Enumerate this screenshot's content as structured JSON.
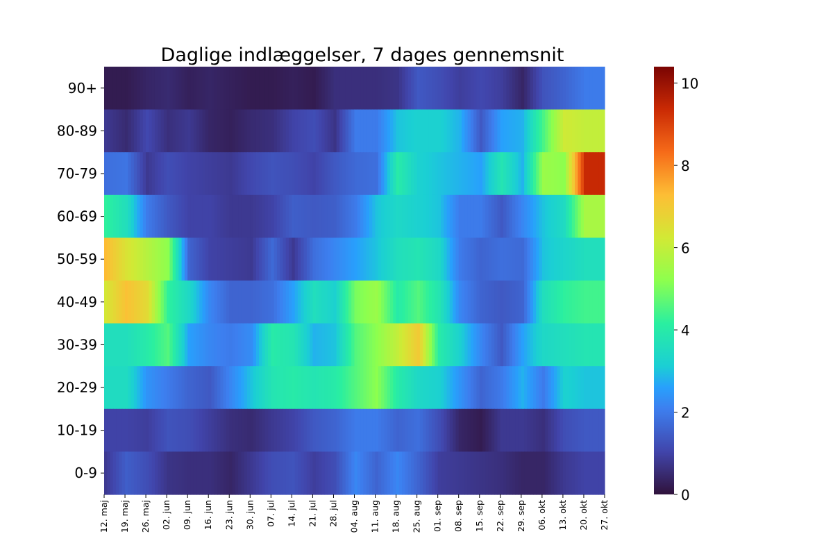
{
  "chart_data": {
    "type": "heatmap",
    "title": "Daglige indlæggelser, 7 dages gennemsnit",
    "xlabel": "",
    "ylabel": "",
    "rows": [
      "90+",
      "80-89",
      "70-79",
      "60-69",
      "50-59",
      "40-49",
      "30-39",
      "20-29",
      "10-19",
      "0-9"
    ],
    "x_tick_labels": [
      "12. maj",
      "19. maj",
      "26. maj",
      "02. jun",
      "09. jun",
      "16. jun",
      "23. jun",
      "30. jun",
      "07. jul",
      "14. jul",
      "21. jul",
      "28. jul",
      "04. aug",
      "11. aug",
      "18. aug",
      "25. aug",
      "01. sep",
      "08. sep",
      "15. sep",
      "22. sep",
      "29. sep",
      "06. okt",
      "13. okt",
      "20. okt",
      "27. okt"
    ],
    "colorbar": {
      "min": 0,
      "max": 10.4,
      "ticks": [
        "0",
        "2",
        "4",
        "6",
        "8",
        "10"
      ],
      "colormap": "turbo"
    },
    "weekly_values": [
      [
        0.2,
        0.2,
        0.4,
        0.5,
        0.3,
        0.4,
        0.3,
        0.2,
        0.2,
        0.3,
        0.2,
        0.6,
        0.6,
        0.6,
        0.7,
        1.4,
        1.2,
        0.9,
        1.1,
        0.9,
        0.4,
        1.3,
        1.6,
        2.0
      ],
      [
        0.8,
        0.5,
        1.1,
        0.6,
        0.8,
        0.4,
        0.3,
        0.5,
        0.6,
        1.0,
        1.2,
        0.7,
        2.0,
        2.0,
        3.0,
        3.2,
        3.2,
        2.8,
        1.4,
        2.6,
        2.8,
        4.5,
        6.2,
        6.0
      ],
      [
        1.8,
        1.9,
        0.8,
        1.2,
        1.0,
        0.9,
        0.8,
        1.1,
        1.3,
        1.2,
        1.0,
        1.4,
        1.7,
        1.8,
        4.0,
        3.2,
        3.0,
        2.8,
        2.6,
        3.8,
        2.8,
        5.4,
        5.2,
        9.4
      ],
      [
        4.2,
        3.6,
        2.0,
        1.4,
        1.0,
        1.0,
        0.8,
        0.8,
        1.0,
        1.5,
        1.4,
        1.5,
        2.0,
        3.0,
        3.4,
        3.2,
        3.0,
        2.0,
        2.0,
        1.4,
        2.2,
        3.0,
        3.5,
        5.6
      ],
      [
        7.3,
        6.4,
        5.8,
        5.2,
        1.6,
        1.0,
        0.9,
        0.8,
        1.7,
        0.8,
        1.8,
        2.2,
        2.6,
        3.0,
        3.6,
        3.8,
        3.4,
        2.0,
        1.6,
        1.8,
        1.7,
        3.0,
        3.3,
        3.6
      ],
      [
        6.3,
        7.2,
        6.6,
        4.2,
        3.4,
        2.2,
        1.6,
        1.6,
        1.8,
        2.6,
        3.6,
        3.2,
        5.0,
        5.4,
        4.0,
        4.6,
        3.8,
        2.2,
        1.6,
        1.4,
        1.6,
        3.6,
        4.2,
        4.4
      ],
      [
        3.6,
        3.6,
        4.0,
        4.6,
        2.6,
        2.2,
        2.0,
        2.3,
        4.0,
        3.8,
        2.8,
        3.0,
        4.6,
        5.2,
        6.0,
        7.0,
        4.0,
        3.2,
        2.2,
        1.4,
        2.6,
        3.4,
        3.6,
        3.8
      ],
      [
        3.5,
        3.5,
        2.4,
        2.0,
        1.6,
        1.4,
        2.2,
        3.0,
        3.8,
        4.0,
        3.8,
        4.0,
        4.6,
        5.2,
        4.0,
        3.4,
        3.2,
        2.4,
        1.6,
        2.0,
        2.8,
        2.0,
        3.2,
        3.0
      ],
      [
        1.0,
        1.0,
        0.9,
        1.3,
        1.2,
        0.9,
        0.6,
        0.5,
        0.8,
        1.0,
        1.4,
        1.6,
        2.0,
        2.0,
        1.6,
        1.8,
        1.2,
        0.4,
        0.2,
        0.8,
        0.8,
        0.6,
        1.2,
        1.4
      ],
      [
        0.8,
        1.5,
        1.2,
        0.7,
        0.6,
        0.6,
        0.4,
        0.8,
        1.2,
        1.3,
        0.9,
        1.2,
        2.2,
        1.6,
        2.2,
        1.6,
        0.9,
        0.8,
        0.7,
        0.6,
        0.4,
        0.4,
        0.8,
        1.0
      ]
    ]
  }
}
